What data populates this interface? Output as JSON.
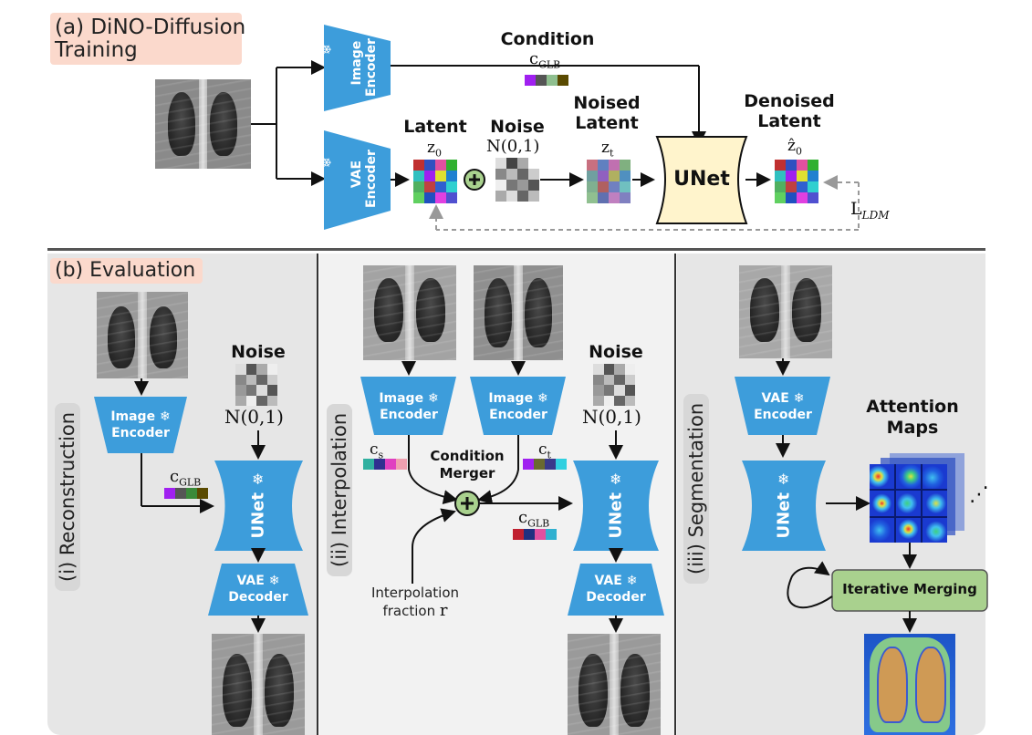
{
  "panel_a": {
    "tag": "(a) DiNO-Diffusion\nTraining",
    "image_encoder": "Image\nEncoder",
    "vae_encoder": "VAE\nEncoder",
    "snowflake": "❄",
    "condition_title": "Condition",
    "c_glb": "c",
    "c_glb_sub": "GLB",
    "latent_title": "Latent",
    "z0": "z",
    "z0_sub": "0",
    "noise_title": "Noise",
    "noise_dist": "N(0,1)",
    "noised_latent_title": "Noised\nLatent",
    "zt": "z",
    "zt_sub": "t",
    "unet": "UNet",
    "denoised_latent_title": "Denoised\nLatent",
    "zhat": "ẑ",
    "zhat_sub": "0",
    "loss": "L",
    "loss_sub": "LDM",
    "plus": "+"
  },
  "panel_b": {
    "tag": "(b) Evaluation",
    "reconstruction": {
      "label": "(i) Reconstruction",
      "image_encoder": "Image ❄\nEncoder",
      "noise_title": "Noise",
      "noise_dist": "N(0,1)",
      "c_glb": "c",
      "c_glb_sub": "GLB",
      "unet": "UNet",
      "vae_decoder": "VAE ❄\nDecoder"
    },
    "interpolation": {
      "label": "(ii) Interpolation",
      "image_encoder_1": "Image ❄\nEncoder",
      "image_encoder_2": "Image ❄\nEncoder",
      "cs": "c",
      "cs_sub": "s",
      "ct": "c",
      "ct_sub": "t",
      "merger": "Condition\nMerger",
      "fraction": "Interpolation\nfraction",
      "fraction_r": "r",
      "c_glb": "c",
      "c_glb_sub": "GLB",
      "noise_title": "Noise",
      "noise_dist": "N(0,1)",
      "unet": "UNet",
      "vae_decoder": "VAE ❄\nDecoder"
    },
    "segmentation": {
      "label": "(iii) Segmentation",
      "vae_encoder": "VAE ❄\nEncoder",
      "unet": "UNet",
      "attention_maps": "Attention\nMaps",
      "ellipsis": "⋰",
      "iterative_merging": "Iterative Merging"
    }
  },
  "colors": {
    "encoder_blue": "#3d9ddb",
    "unet_cream": "#fff4cc",
    "merge_green": "#a9d18e",
    "tag_pink": "#fbd9cc",
    "panel_grey": "#e6e6e6"
  },
  "icons": [
    "snowflake-icon",
    "plus-circle-icon"
  ]
}
